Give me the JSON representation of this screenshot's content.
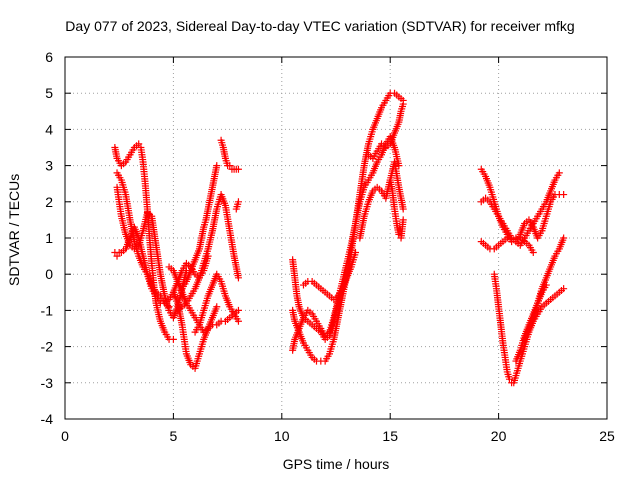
{
  "chart_data": {
    "type": "scatter",
    "title": "Day 077 of 2023, Sidereal Day-to-day VTEC variation (SDTVAR) for receiver mfkg",
    "xlabel": "GPS time / hours",
    "ylabel": "SDTVAR / TECUs",
    "xlim": [
      0,
      25
    ],
    "ylim": [
      -4,
      6
    ],
    "xticks": [
      0,
      5,
      10,
      15,
      20,
      25
    ],
    "yticks": [
      -4,
      -3,
      -2,
      -1,
      0,
      1,
      2,
      3,
      4,
      5,
      6
    ],
    "grid": true,
    "marker": "+",
    "color": "#ff0000",
    "series": [
      {
        "x": [
          2.3,
          2.4,
          2.6,
          2.8,
          3.0,
          3.2,
          3.4,
          3.5,
          3.6,
          3.7,
          3.8,
          3.9,
          4.0,
          4.1,
          4.2,
          4.4,
          4.6,
          4.8,
          5.0
        ],
        "y": [
          3.5,
          3.2,
          3.0,
          3.1,
          3.3,
          3.5,
          3.6,
          3.5,
          3.1,
          2.5,
          1.8,
          1.0,
          0.3,
          -0.3,
          -0.8,
          -1.3,
          -1.6,
          -1.8,
          -1.8
        ]
      },
      {
        "x": [
          2.4,
          2.5,
          2.6,
          2.8,
          3.0,
          3.2,
          3.4,
          3.6,
          3.8,
          4.0,
          4.2,
          4.4,
          4.6,
          4.8,
          5.0,
          5.2,
          5.4,
          5.6
        ],
        "y": [
          2.4,
          2.0,
          1.6,
          1.1,
          0.8,
          0.7,
          0.8,
          1.2,
          1.7,
          1.6,
          0.8,
          0.0,
          -0.6,
          -1.0,
          -1.2,
          -0.9,
          -0.4,
          0.1
        ]
      },
      {
        "x": [
          2.3,
          2.4,
          2.5,
          2.6,
          2.8,
          3.0,
          3.2,
          3.4,
          3.6,
          3.8,
          4.0,
          4.2,
          4.4,
          4.6,
          4.8,
          5.0,
          5.2,
          5.4,
          5.6,
          5.8,
          6.0,
          6.2,
          6.4,
          6.6
        ],
        "y": [
          0.6,
          0.5,
          0.6,
          0.6,
          0.7,
          1.0,
          1.3,
          1.0,
          0.5,
          0.0,
          -0.4,
          -0.6,
          -0.8,
          -0.8,
          -0.7,
          -0.5,
          -0.2,
          0.1,
          0.3,
          0.2,
          0.0,
          -0.1,
          0.1,
          0.5
        ]
      },
      {
        "x": [
          2.4,
          2.6,
          2.8,
          3.0,
          3.2,
          3.4,
          3.6,
          3.8,
          4.0,
          4.2,
          4.4,
          4.6,
          4.8
        ],
        "y": [
          2.8,
          2.6,
          2.2,
          1.5,
          0.9,
          0.5,
          0.2,
          0.0,
          -0.3,
          -0.5,
          -0.6,
          -0.8,
          -0.9
        ]
      },
      {
        "x": [
          5.0,
          5.2,
          5.4,
          5.5,
          5.6,
          5.8,
          6.0,
          6.2,
          6.4,
          6.6,
          6.8,
          7.0,
          7.2,
          7.4,
          7.6,
          7.8,
          8.0
        ],
        "y": [
          -0.5,
          -0.8,
          -1.4,
          -1.8,
          -2.2,
          -2.5,
          -2.6,
          -2.2,
          -1.8,
          -1.5,
          -1.4,
          -1.4,
          -1.3,
          -1.3,
          -1.2,
          -1.1,
          -1.0
        ]
      },
      {
        "x": [
          4.8,
          5.0,
          5.2,
          5.4,
          5.6,
          5.8,
          6.0,
          6.2,
          6.4,
          6.6,
          6.8,
          7.0
        ],
        "y": [
          0.2,
          0.1,
          -0.2,
          -0.5,
          -0.8,
          -1.0,
          -1.2,
          -1.4,
          -1.6,
          -1.5,
          -1.2,
          -0.9
        ]
      },
      {
        "x": [
          5.4,
          5.6,
          5.8,
          6.0,
          6.2,
          6.3,
          6.4,
          6.5,
          6.6,
          6.7,
          6.8,
          6.9,
          7.0
        ],
        "y": [
          -0.4,
          -0.2,
          0.1,
          0.4,
          0.7,
          1.0,
          1.3,
          1.5,
          1.8,
          2.1,
          2.4,
          2.7,
          3.0
        ]
      },
      {
        "x": [
          5.2,
          5.4,
          5.6,
          5.8,
          6.0,
          6.2,
          6.4,
          6.6,
          6.8,
          7.0,
          7.2,
          7.4,
          7.6,
          7.8,
          8.0
        ],
        "y": [
          -1.0,
          -0.9,
          -0.8,
          -0.6,
          -0.4,
          -0.1,
          0.3,
          0.7,
          1.2,
          1.8,
          2.2,
          1.9,
          1.2,
          0.5,
          -0.1
        ]
      },
      {
        "x": [
          6.0,
          6.2,
          6.4,
          6.6,
          6.8,
          7.0,
          7.2,
          7.4,
          7.6,
          7.8,
          8.0
        ],
        "y": [
          -1.6,
          -1.4,
          -1.0,
          -0.6,
          -0.3,
          0.0,
          -0.2,
          -0.6,
          -0.9,
          -1.1,
          -1.3
        ]
      },
      {
        "x": [
          7.2,
          7.3,
          7.4,
          7.5,
          7.6,
          7.7,
          7.8,
          7.9,
          8.0
        ],
        "y": [
          3.7,
          3.5,
          3.2,
          3.0,
          3.0,
          2.9,
          2.9,
          2.9,
          2.9
        ]
      },
      {
        "x": [
          7.9,
          8.0
        ],
        "y": [
          1.8,
          2.0
        ]
      },
      {
        "x": [
          10.5,
          10.6,
          10.8,
          11.0,
          11.2,
          11.4,
          11.6,
          11.8,
          12.0,
          12.2,
          12.4,
          12.6,
          12.8,
          13.0,
          13.2,
          13.4,
          13.6,
          13.8,
          14.0,
          14.2,
          14.4,
          14.6,
          14.8,
          15.0,
          15.2,
          15.4,
          15.6
        ],
        "y": [
          -1.0,
          -1.3,
          -1.6,
          -1.9,
          -2.1,
          -2.3,
          -2.4,
          -2.4,
          -2.4,
          -2.2,
          -1.8,
          -1.2,
          -0.6,
          0.0,
          0.6,
          1.4,
          2.2,
          3.0,
          3.6,
          4.0,
          4.3,
          4.6,
          4.8,
          5.0,
          5.0,
          4.9,
          4.8
        ]
      },
      {
        "x": [
          10.5,
          10.6,
          10.8,
          11.0,
          11.2,
          11.4,
          11.6,
          11.8,
          12.0,
          12.2,
          12.4,
          12.6,
          12.8,
          13.0,
          13.2,
          13.4,
          13.6,
          13.8,
          14.0,
          14.2,
          14.4,
          14.6,
          14.8,
          15.0,
          15.2,
          15.4
        ],
        "y": [
          -2.1,
          -1.8,
          -1.5,
          -1.2,
          -1.0,
          -1.1,
          -1.3,
          -1.5,
          -1.7,
          -1.6,
          -1.2,
          -0.7,
          -0.2,
          0.3,
          0.8,
          1.4,
          2.0,
          2.4,
          2.6,
          2.8,
          3.1,
          3.3,
          3.6,
          3.8,
          3.5,
          3.0
        ]
      },
      {
        "x": [
          10.5,
          10.6,
          10.7,
          10.8,
          11.0,
          11.2,
          11.4,
          11.6,
          11.8,
          12.0,
          12.2,
          12.4,
          12.6,
          12.8,
          13.0,
          13.2
        ],
        "y": [
          0.4,
          -0.1,
          -0.6,
          -0.9,
          -1.2,
          -1.3,
          -1.4,
          -1.5,
          -1.6,
          -1.8,
          -1.7,
          -1.3,
          -0.8,
          -0.4,
          0.0,
          0.2
        ]
      },
      {
        "x": [
          11.0,
          11.2,
          11.4,
          11.6,
          11.8,
          12.0,
          12.2,
          12.4,
          12.6,
          12.8,
          13.0,
          13.2,
          13.4
        ],
        "y": [
          -0.3,
          -0.2,
          -0.2,
          -0.3,
          -0.4,
          -0.5,
          -0.6,
          -0.7,
          -0.6,
          -0.4,
          -0.1,
          0.2,
          0.6
        ]
      },
      {
        "x": [
          13.6,
          13.8,
          14.0,
          14.2,
          14.4,
          14.6,
          14.8,
          15.0,
          15.2,
          15.4,
          15.6
        ],
        "y": [
          1.0,
          1.6,
          2.0,
          2.3,
          2.4,
          2.3,
          2.1,
          2.6,
          3.1,
          2.4,
          1.8
        ]
      },
      {
        "x": [
          14.0,
          14.2,
          14.4,
          14.6,
          14.8,
          15.0,
          15.2,
          15.4,
          15.5,
          15.6
        ],
        "y": [
          3.3,
          3.2,
          3.4,
          3.6,
          3.5,
          3.6,
          3.9,
          4.2,
          4.5,
          4.7
        ]
      },
      {
        "x": [
          15.0,
          15.1,
          15.2,
          15.3,
          15.4,
          15.5,
          15.6
        ],
        "y": [
          2.6,
          2.3,
          1.8,
          1.4,
          1.1,
          1.0,
          1.5
        ]
      },
      {
        "x": [
          19.2,
          19.4,
          19.6,
          19.8,
          20.0,
          20.2,
          20.4,
          20.6,
          20.8,
          21.0,
          21.2,
          21.4,
          21.6,
          21.8,
          22.0,
          22.2,
          22.4,
          22.6,
          22.8,
          23.0
        ],
        "y": [
          2.9,
          2.7,
          2.4,
          2.0,
          1.6,
          1.3,
          1.1,
          0.9,
          0.9,
          1.1,
          1.4,
          1.5,
          1.3,
          1.0,
          1.2,
          1.6,
          2.0,
          2.2,
          2.2,
          2.2
        ]
      },
      {
        "x": [
          19.2,
          19.4,
          19.6,
          19.8,
          20.0,
          20.2,
          20.4,
          20.6,
          20.8,
          21.0,
          21.2,
          21.4,
          21.6,
          21.8,
          22.0,
          22.2,
          22.4,
          22.6,
          22.8
        ],
        "y": [
          2.0,
          2.1,
          2.0,
          1.8,
          1.6,
          1.4,
          1.2,
          1.0,
          0.9,
          0.8,
          1.0,
          1.2,
          1.4,
          1.6,
          1.8,
          2.0,
          2.3,
          2.6,
          2.8
        ]
      },
      {
        "x": [
          19.2,
          19.4,
          19.6,
          19.8,
          20.0,
          20.2,
          20.4,
          20.6,
          20.8,
          21.0,
          21.2,
          21.4,
          21.6
        ],
        "y": [
          0.9,
          0.8,
          0.7,
          0.7,
          0.8,
          0.9,
          1.0,
          1.0,
          1.0,
          1.0,
          0.9,
          0.8,
          0.6
        ]
      },
      {
        "x": [
          19.8,
          19.9,
          20.0,
          20.1,
          20.2,
          20.3,
          20.4,
          20.5,
          20.6,
          20.7,
          20.8,
          21.0,
          21.2,
          21.4,
          21.6,
          21.8,
          22.0,
          22.2,
          22.4,
          22.6,
          22.8,
          23.0
        ],
        "y": [
          0.0,
          -0.4,
          -0.9,
          -1.4,
          -1.9,
          -2.3,
          -2.7,
          -2.9,
          -3.0,
          -3.0,
          -2.8,
          -2.4,
          -2.0,
          -1.6,
          -1.3,
          -1.1,
          -0.9,
          -0.8,
          -0.7,
          -0.6,
          -0.5,
          -0.4
        ]
      },
      {
        "x": [
          20.8,
          21.0,
          21.2,
          21.4,
          21.6,
          21.8,
          22.0,
          22.2,
          22.4,
          22.6,
          22.8,
          23.0
        ],
        "y": [
          -2.4,
          -2.1,
          -1.7,
          -1.4,
          -1.1,
          -0.8,
          -0.4,
          -0.1,
          0.2,
          0.5,
          0.7,
          1.0
        ]
      },
      {
        "x": [
          21.2,
          21.4,
          21.6,
          21.8,
          22.0,
          22.2
        ],
        "y": [
          -1.8,
          -1.5,
          -1.2,
          -0.8,
          -0.5,
          -0.3
        ]
      }
    ]
  }
}
